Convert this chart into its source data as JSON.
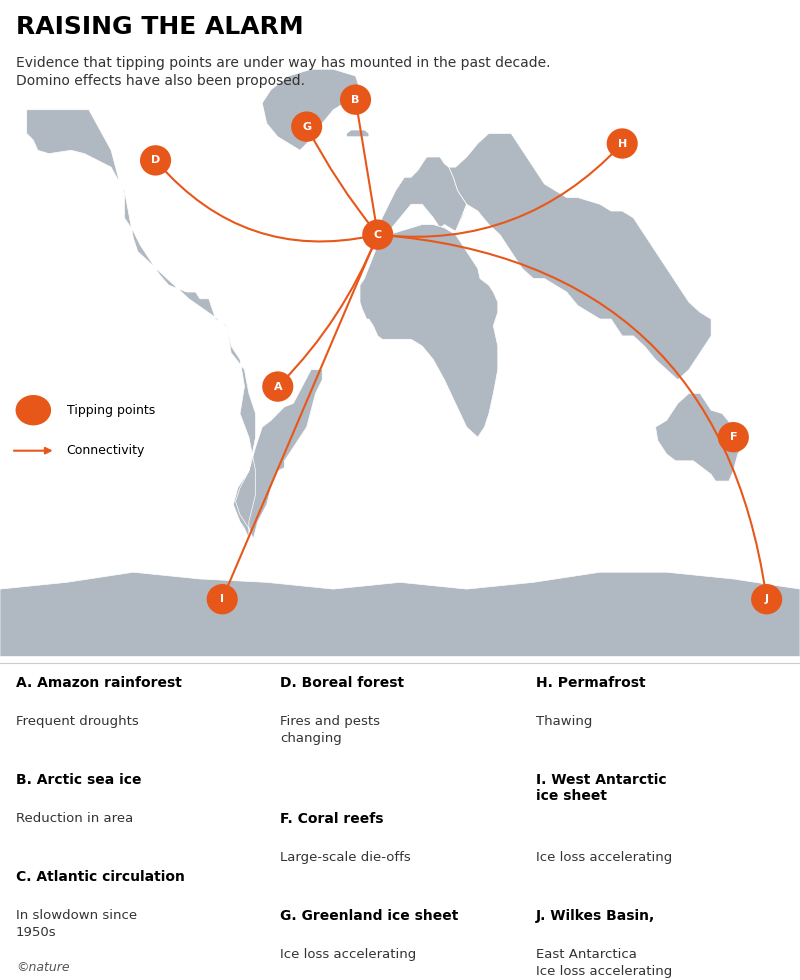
{
  "title": "RAISING THE ALARM",
  "subtitle": "Evidence that tipping points are under way has mounted in the past decade.\nDomino effects have also been proposed.",
  "background_color": "#ffffff",
  "map_color": "#b0b8c1",
  "ocean_color": "#e8eef3",
  "orange": "#e8571a",
  "orange_dark": "#c94a10",
  "tipping_points": {
    "A": {
      "label": "A",
      "lon": -55,
      "lat": -10
    },
    "B": {
      "label": "B",
      "lon": -20,
      "lat": 75
    },
    "C": {
      "label": "C",
      "lon": -10,
      "lat": 35
    },
    "D": {
      "label": "D",
      "lon": -110,
      "lat": 57
    },
    "F": {
      "label": "F",
      "lon": 150,
      "lat": -25
    },
    "G": {
      "label": "G",
      "lon": -42,
      "lat": 67
    },
    "H": {
      "label": "H",
      "lon": 100,
      "lat": 62
    },
    "I": {
      "label": "I",
      "lon": -80,
      "lat": -73
    },
    "J": {
      "label": "J",
      "lon": 165,
      "lat": -73
    }
  },
  "connections": [
    {
      "from": "D",
      "to": "C",
      "arc": true
    },
    {
      "from": "B",
      "to": "C",
      "arc": false
    },
    {
      "from": "G",
      "to": "C",
      "arc": false
    },
    {
      "from": "H",
      "to": "C",
      "arc": true
    },
    {
      "from": "C",
      "to": "A",
      "arc": false
    },
    {
      "from": "C",
      "to": "I",
      "arc": false
    },
    {
      "from": "C",
      "to": "J",
      "arc": true
    }
  ],
  "legend_items": [
    {
      "label": "Tipping points",
      "type": "ellipse"
    },
    {
      "label": "Connectivity",
      "type": "arrow"
    }
  ],
  "descriptions": [
    {
      "key": "A",
      "title": "A. Amazon rainforest",
      "desc": "Frequent droughts"
    },
    {
      "key": "B",
      "title": "B. Arctic sea ice",
      "desc": "Reduction in area"
    },
    {
      "key": "C",
      "title": "C. Atlantic circulation",
      "desc": "In slowdown since\n1950s"
    },
    {
      "key": "D",
      "title": "D. Boreal forest",
      "desc": "Fires and pests\nchanging"
    },
    {
      "key": "F",
      "title": "F. Coral reefs",
      "desc": "Large-scale die-offs"
    },
    {
      "key": "G",
      "title": "G. Greenland ice sheet",
      "desc": "Ice loss accelerating"
    },
    {
      "key": "H",
      "title": "H. Permafrost",
      "desc": "Thawing"
    },
    {
      "key": "I",
      "title": "I. West Antarctic\nice sheet",
      "desc": "Ice loss accelerating"
    },
    {
      "key": "J",
      "title": "J. Wilkes Basin,",
      "desc": "East Antarctica\nIce loss accelerating"
    }
  ],
  "copyright": "©nature"
}
